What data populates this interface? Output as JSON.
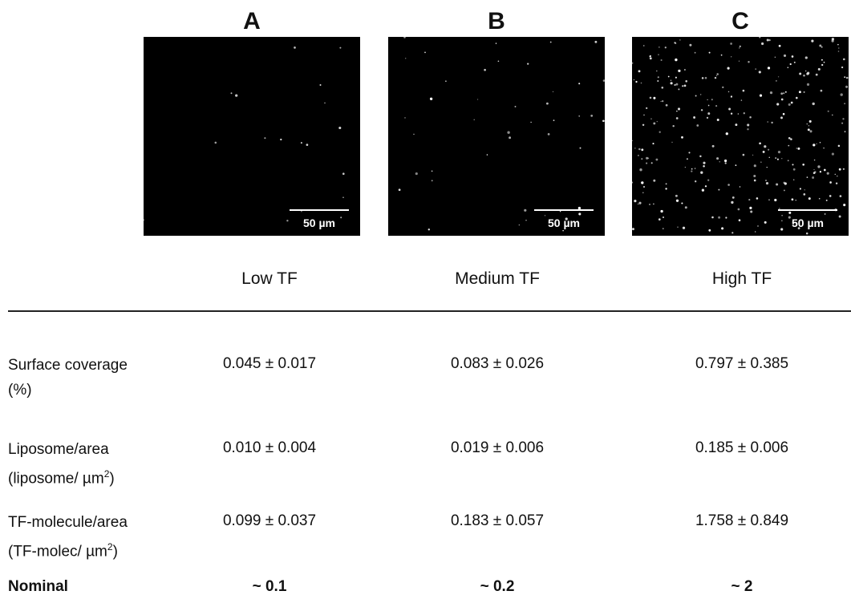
{
  "panels": [
    {
      "letter": "A",
      "scale_bar": "50 µm",
      "condition": "Low TF"
    },
    {
      "letter": "B",
      "scale_bar": "50 µm",
      "condition": "Medium TF"
    },
    {
      "letter": "C",
      "scale_bar": "50 µm",
      "condition": "High TF"
    }
  ],
  "table": {
    "rows": [
      {
        "label": [
          "Surface coverage",
          "(%)"
        ],
        "values": [
          "0.045 ± 0.017",
          "0.083 ± 0.026",
          "0.797 ± 0.385"
        ]
      },
      {
        "label": [
          "Liposome/area",
          [
            "(liposome/ µm",
            "2",
            ")"
          ]
        ],
        "values": [
          "0.010 ± 0.004",
          "0.019 ± 0.006",
          "0.185 ± 0.006"
        ]
      },
      {
        "label": [
          "TF-molecule/area",
          [
            "(TF-molec/ µm",
            "2",
            ")"
          ]
        ],
        "values": [
          "0.099 ± 0.037",
          "0.183 ± 0.057",
          "1.758 ± 0.849"
        ]
      }
    ],
    "nominal": {
      "label": "Nominal",
      "values": [
        "~ 0.1",
        "~ 0.2",
        "~ 2"
      ]
    }
  }
}
